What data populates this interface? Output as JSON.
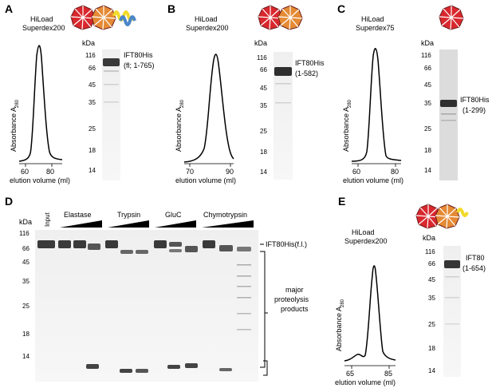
{
  "panels": [
    {
      "letter": "A",
      "column": "HiLoad",
      "column2": "Superdex200",
      "xticks": [
        "60",
        "80"
      ],
      "xlabel": "elution volume (ml)",
      "ylabel_main": "Absorbance A",
      "ylabel_sub": "280",
      "gel_protein": "IFT80His",
      "gel_construct": "(fl; 1-765)"
    },
    {
      "letter": "B",
      "column": "HiLoad",
      "column2": "Superdex200",
      "xticks": [
        "70",
        "90"
      ],
      "xlabel": "elution volume (ml)",
      "ylabel_main": "Absorbance A",
      "ylabel_sub": "280",
      "gel_protein": "IFT80His",
      "gel_construct": "(1-582)"
    },
    {
      "letter": "C",
      "column": "HiLoad",
      "column2": "Superdex75",
      "xticks": [
        "60",
        "80"
      ],
      "xlabel": "elution volume (ml)",
      "ylabel_main": "Absorbance A",
      "ylabel_sub": "280",
      "gel_protein": "IFT80His",
      "gel_construct": "(1-299)"
    },
    {
      "letter": "E",
      "column": "HiLoad",
      "column2": "Superdex200",
      "xticks": [
        "65",
        "85"
      ],
      "xlabel": "elution volume (ml)",
      "ylabel_main": "Absorbance A",
      "ylabel_sub": "280",
      "gel_protein": "IFT80",
      "gel_construct": "(1-654)"
    }
  ],
  "kda_label": "kDa",
  "markers": [
    "116",
    "66",
    "45",
    "35",
    "25",
    "18",
    "14"
  ],
  "panel_d": {
    "letter": "D",
    "lanes": [
      "Input",
      "Elastase",
      "Trypsin",
      "GluC",
      "Chymotrypsin"
    ],
    "band_label": "IFT80His(f.l.)",
    "products_label": [
      "major",
      "proteolysis",
      "products"
    ]
  },
  "colors": {
    "red_domain": "#d8282e",
    "orange_domain": "#e58a35",
    "blue_helix": "#4a86c8",
    "yellow_helix": "#f2da29"
  }
}
